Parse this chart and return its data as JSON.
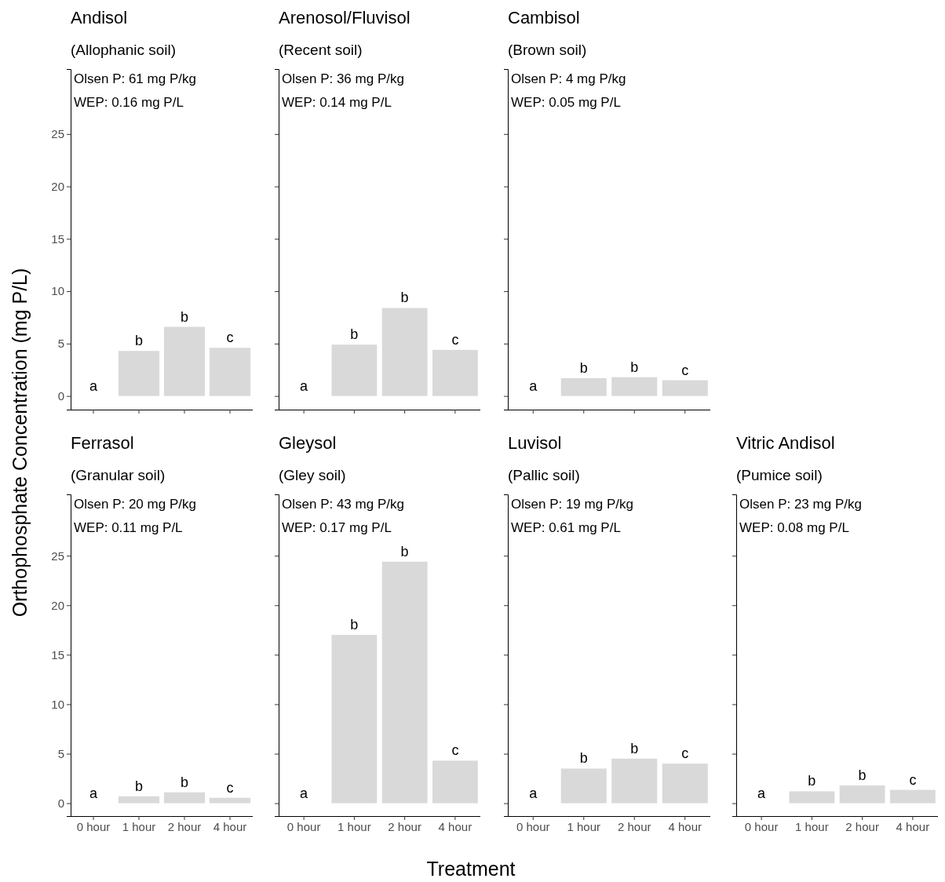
{
  "chart_data": [
    {
      "type": "bar",
      "title": "Andisol",
      "subtitle": "(Allophanic soil)",
      "ylabel": "Orthophosphate Concentration (mg P/L)",
      "categories": [
        "0 hour",
        "1 hour",
        "2 hour",
        "4 hour"
      ],
      "values": [
        0,
        4.3,
        6.6,
        4.6
      ],
      "color": "#d9d9d9",
      "ylim": [
        -1.3,
        31.2
      ],
      "yticks": [
        0,
        5,
        10,
        15,
        20,
        25
      ],
      "tick_labels": "y",
      "annotations": [
        "Olsen P: 61 mg P/kg",
        "WEP: 0.16 mg P/L",
        {
          "text": "a",
          "x": "0 hour",
          "y": 0
        },
        {
          "text": "b",
          "x": "1 hour",
          "y": 4.3
        },
        {
          "text": "b",
          "x": "2 hour",
          "y": 6.6
        },
        {
          "text": "c",
          "x": "4 hour",
          "y": 4.6
        }
      ]
    },
    {
      "type": "bar",
      "title": "Arenosol/Fluvisol",
      "subtitle": "(Recent soil)",
      "categories": [
        "0 hour",
        "1 hour",
        "2 hour",
        "4 hour"
      ],
      "values": [
        0,
        4.9,
        8.4,
        4.4
      ],
      "color": "#d9d9d9",
      "ylim": [
        -1.3,
        31.2
      ],
      "yticks": [
        0,
        5,
        10,
        15,
        20,
        25
      ],
      "tick_labels": false,
      "annotations": [
        "Olsen P: 36 mg P/kg",
        "WEP: 0.14 mg P/L",
        {
          "text": "a",
          "x": "0 hour",
          "y": 0
        },
        {
          "text": "b",
          "x": "1 hour",
          "y": 4.9
        },
        {
          "text": "b",
          "x": "2 hour",
          "y": 8.4
        },
        {
          "text": "c",
          "x": "4 hour",
          "y": 4.4
        }
      ]
    },
    {
      "type": "bar",
      "title": "Cambisol",
      "subtitle": "(Brown soil)",
      "categories": [
        "0 hour",
        "1 hour",
        "2 hour",
        "4 hour"
      ],
      "values": [
        0,
        1.7,
        1.8,
        1.5
      ],
      "color": "#d9d9d9",
      "ylim": [
        -1.3,
        31.2
      ],
      "yticks": [
        0,
        5,
        10,
        15,
        20,
        25
      ],
      "tick_labels": false,
      "annotations": [
        "Olsen P: 4 mg P/kg",
        "WEP: 0.05 mg P/L",
        {
          "text": "a",
          "x": "0 hour",
          "y": 0
        },
        {
          "text": "b",
          "x": "1 hour",
          "y": 1.7
        },
        {
          "text": "b",
          "x": "2 hour",
          "y": 1.8
        },
        {
          "text": "c",
          "x": "4 hour",
          "y": 1.5
        }
      ]
    },
    {
      "type": "bar",
      "title": "Ferrasol",
      "subtitle": "(Granular soil)",
      "categories": [
        "0 hour",
        "1 hour",
        "2 hour",
        "4 hour"
      ],
      "values": [
        0,
        0.7,
        1.1,
        0.55
      ],
      "color": "#d9d9d9",
      "ylim": [
        -1.3,
        31.2
      ],
      "yticks": [
        0,
        5,
        10,
        15,
        20,
        25
      ],
      "annotations": [
        "Olsen P: 20 mg P/kg",
        "WEP: 0.11 mg P/L",
        {
          "text": "a",
          "x": "0 hour",
          "y": 0
        },
        {
          "text": "b",
          "x": "1 hour",
          "y": 0.7
        },
        {
          "text": "b",
          "x": "2 hour",
          "y": 1.1
        },
        {
          "text": "c",
          "x": "4 hour",
          "y": 0.55
        }
      ]
    },
    {
      "type": "bar",
      "title": "Gleysol",
      "subtitle": "(Gley soil)",
      "xlabel": "Treatment",
      "categories": [
        "0 hour",
        "1 hour",
        "2 hour",
        "4 hour"
      ],
      "values": [
        0,
        17,
        24.4,
        4.3
      ],
      "color": "#d9d9d9",
      "ylim": [
        -1.3,
        31.2
      ],
      "yticks": [
        0,
        5,
        10,
        15,
        20,
        25
      ],
      "tick_labels": "x",
      "annotations": [
        "Olsen P: 43 mg P/kg",
        "WEP: 0.17 mg P/L",
        {
          "text": "a",
          "x": "0 hour",
          "y": 0
        },
        {
          "text": "b",
          "x": "1 hour",
          "y": 17
        },
        {
          "text": "b",
          "x": "2 hour",
          "y": 24.4
        },
        {
          "text": "c",
          "x": "4 hour",
          "y": 4.3
        }
      ]
    },
    {
      "type": "bar",
      "title": "Luvisol",
      "subtitle": "(Pallic soil)",
      "categories": [
        "0 hour",
        "1 hour",
        "2 hour",
        "4 hour"
      ],
      "values": [
        0,
        3.5,
        4.5,
        4.0
      ],
      "color": "#d9d9d9",
      "ylim": [
        -1.3,
        31.2
      ],
      "yticks": [
        0,
        5,
        10,
        15,
        20,
        25
      ],
      "tick_labels": "x",
      "annotations": [
        "Olsen P: 19 mg P/kg",
        "WEP: 0.61 mg P/L",
        {
          "text": "a",
          "x": "0 hour",
          "y": 0
        },
        {
          "text": "b",
          "x": "1 hour",
          "y": 3.5
        },
        {
          "text": "b",
          "x": "2 hour",
          "y": 4.5
        },
        {
          "text": "c",
          "x": "4 hour",
          "y": 4.0
        }
      ]
    },
    {
      "type": "bar",
      "title": "Vitric Andisol",
      "subtitle": "(Pumice soil)",
      "categories": [
        "0 hour",
        "1 hour",
        "2 hour",
        "4 hour"
      ],
      "values": [
        0,
        1.2,
        1.8,
        1.35
      ],
      "color": "#d9d9d9",
      "ylim": [
        -1.3,
        31.2
      ],
      "yticks": [
        0,
        5,
        10,
        15,
        20,
        25
      ],
      "tick_labels": "x",
      "annotations": [
        "Olsen P: 23 mg P/kg",
        "WEP: 0.08 mg P/L",
        {
          "text": "a",
          "x": "0 hour",
          "y": 0
        },
        {
          "text": "b",
          "x": "1 hour",
          "y": 1.2
        },
        {
          "text": "b",
          "x": "2 hour",
          "y": 1.8
        },
        {
          "text": "c",
          "x": "4 hour",
          "y": 1.35
        }
      ]
    }
  ]
}
